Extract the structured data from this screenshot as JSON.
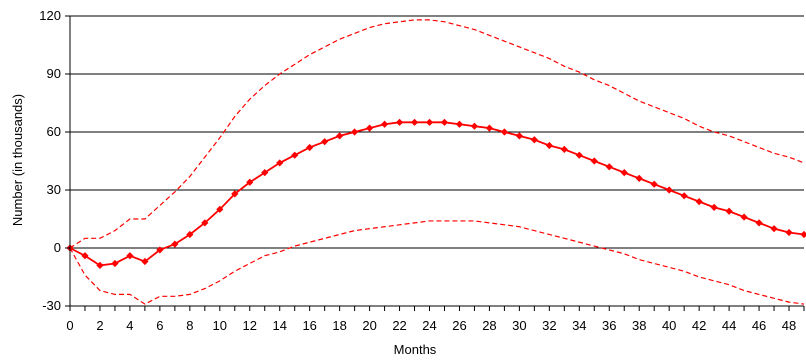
{
  "chart_data": {
    "type": "line",
    "title": "",
    "xlabel": "Months",
    "ylabel": "Number (in thousands)",
    "xlim": [
      0,
      49
    ],
    "ylim": [
      -30,
      120
    ],
    "x_tick_labels": [
      "0",
      "2",
      "4",
      "6",
      "8",
      "10",
      "12",
      "14",
      "16",
      "18",
      "20",
      "22",
      "24",
      "26",
      "28",
      "30",
      "32",
      "34",
      "36",
      "38",
      "40",
      "42",
      "44",
      "46",
      "48"
    ],
    "y_tick_labels": [
      "-30",
      "0",
      "30",
      "60",
      "90",
      "120"
    ],
    "y_ticks": [
      -30,
      0,
      30,
      60,
      90,
      120
    ],
    "grid": "horizontal",
    "legend": "none",
    "colors": {
      "series": "#ff0000",
      "grid": "#000000",
      "axis": "#000000"
    },
    "series": [
      {
        "style": "solid-with-diamond-markers",
        "x": [
          0,
          1,
          2,
          3,
          4,
          5,
          6,
          7,
          8,
          9,
          10,
          11,
          12,
          13,
          14,
          15,
          16,
          17,
          18,
          19,
          20,
          21,
          22,
          23,
          24,
          25,
          26,
          27,
          28,
          29,
          30,
          31,
          32,
          33,
          34,
          35,
          36,
          37,
          38,
          39,
          40,
          41,
          42,
          43,
          44,
          45,
          46,
          47,
          48,
          49
        ],
        "values": [
          0,
          -4,
          -9,
          -8,
          -4,
          -7,
          -1,
          2,
          7,
          13,
          20,
          28,
          34,
          39,
          44,
          48,
          52,
          55,
          58,
          60,
          62,
          64,
          65,
          65,
          65,
          65,
          64,
          63,
          62,
          60,
          58,
          56,
          53,
          51,
          48,
          45,
          42,
          39,
          36,
          33,
          30,
          27,
          24,
          21,
          19,
          16,
          13,
          10,
          8,
          7
        ]
      },
      {
        "style": "dashed",
        "x": [
          0,
          1,
          2,
          3,
          4,
          5,
          6,
          7,
          8,
          9,
          10,
          11,
          12,
          13,
          14,
          15,
          16,
          17,
          18,
          19,
          20,
          21,
          22,
          23,
          24,
          25,
          26,
          27,
          28,
          29,
          30,
          31,
          32,
          33,
          34,
          35,
          36,
          37,
          38,
          39,
          40,
          41,
          42,
          43,
          44,
          45,
          46,
          47,
          48,
          49
        ],
        "values": [
          0,
          5,
          5,
          9,
          15,
          15,
          22,
          29,
          37,
          47,
          57,
          68,
          77,
          84,
          90,
          95,
          100,
          104,
          108,
          111,
          114,
          116,
          117,
          118,
          118,
          117,
          115,
          113,
          110,
          107,
          104,
          101,
          98,
          94,
          91,
          87,
          84,
          80,
          76,
          73,
          70,
          67,
          63,
          60,
          58,
          55,
          52,
          49,
          47,
          44
        ]
      },
      {
        "style": "dashed",
        "x": [
          0,
          1,
          2,
          3,
          4,
          5,
          6,
          7,
          8,
          9,
          10,
          11,
          12,
          13,
          14,
          15,
          16,
          17,
          18,
          19,
          20,
          21,
          22,
          23,
          24,
          25,
          26,
          27,
          28,
          29,
          30,
          31,
          32,
          33,
          34,
          35,
          36,
          37,
          38,
          39,
          40,
          41,
          42,
          43,
          44,
          45,
          46,
          47,
          48,
          49
        ],
        "values": [
          0,
          -14,
          -22,
          -24,
          -24,
          -29,
          -25,
          -25,
          -24,
          -21,
          -17,
          -12,
          -8,
          -4,
          -2,
          1,
          3,
          5,
          7,
          9,
          10,
          11,
          12,
          13,
          14,
          14,
          14,
          14,
          13,
          12,
          11,
          9,
          7,
          5,
          3,
          1,
          -1,
          -3,
          -6,
          -8,
          -10,
          -12,
          -15,
          -17,
          -19,
          -22,
          -24,
          -26,
          -28,
          -29
        ]
      }
    ]
  }
}
